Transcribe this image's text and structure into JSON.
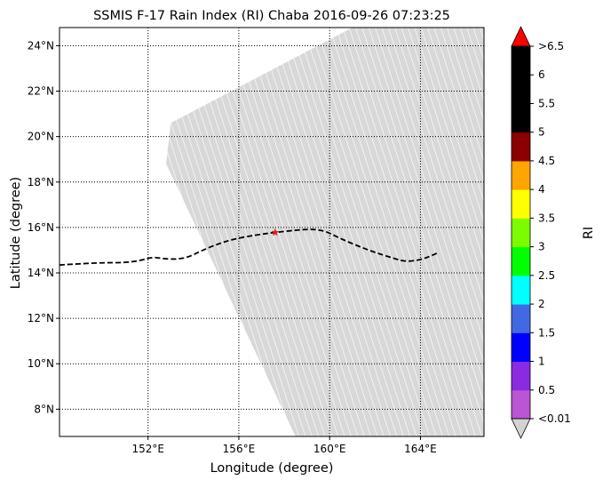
{
  "chart_data": {
    "type": "map",
    "title": "SSMIS F-17 Rain Index (RI) Chaba 2016-09-26 07:23:25",
    "xlabel": "Longitude (degree)",
    "ylabel": "Latitude (degree)",
    "xlim": [
      148.1,
      166.8
    ],
    "ylim": [
      6.8,
      24.8
    ],
    "x_ticks": [
      {
        "value": 152,
        "label": "152°E"
      },
      {
        "value": 156,
        "label": "156°E"
      },
      {
        "value": 160,
        "label": "160°E"
      },
      {
        "value": 164,
        "label": "164°E"
      }
    ],
    "y_ticks": [
      {
        "value": 8,
        "label": "8°N"
      },
      {
        "value": 10,
        "label": "10°N"
      },
      {
        "value": 12,
        "label": "12°N"
      },
      {
        "value": 14,
        "label": "14°N"
      },
      {
        "value": 16,
        "label": "16°N"
      },
      {
        "value": 18,
        "label": "18°N"
      },
      {
        "value": 20,
        "label": "20°N"
      },
      {
        "value": 22,
        "label": "22°N"
      },
      {
        "value": 24,
        "label": "24°N"
      }
    ],
    "grid": "dotted",
    "swath": {
      "color": "#d3d3d3",
      "polygon": [
        [
          158.5,
          6.8
        ],
        [
          166.8,
          6.8
        ],
        [
          166.8,
          24.8
        ],
        [
          161.0,
          24.8
        ],
        [
          153.0,
          20.6
        ],
        [
          152.8,
          18.8
        ]
      ]
    },
    "track": {
      "style": "dashed",
      "color": "#000000",
      "points": [
        [
          148.1,
          14.35
        ],
        [
          149.0,
          14.4
        ],
        [
          150.0,
          14.45
        ],
        [
          151.0,
          14.45
        ],
        [
          151.7,
          14.55
        ],
        [
          152.2,
          14.7
        ],
        [
          152.7,
          14.62
        ],
        [
          153.3,
          14.6
        ],
        [
          153.8,
          14.7
        ],
        [
          154.3,
          14.95
        ],
        [
          155.0,
          15.25
        ],
        [
          155.8,
          15.5
        ],
        [
          156.8,
          15.68
        ],
        [
          157.6,
          15.78
        ],
        [
          158.5,
          15.88
        ],
        [
          159.2,
          15.93
        ],
        [
          159.8,
          15.85
        ],
        [
          160.4,
          15.55
        ],
        [
          161.2,
          15.2
        ],
        [
          162.0,
          14.9
        ],
        [
          162.8,
          14.65
        ],
        [
          163.3,
          14.5
        ],
        [
          163.9,
          14.55
        ],
        [
          164.4,
          14.72
        ],
        [
          164.8,
          14.9
        ]
      ]
    },
    "storm_center": {
      "lon": 157.6,
      "lat": 15.78,
      "marker": "star",
      "color": "#e41a1c"
    },
    "colorbar": {
      "label": "RI",
      "tick_labels": [
        "<0.01",
        "0.5",
        "1",
        "1.5",
        "2",
        "2.5",
        "3",
        "3.5",
        "4",
        "4.5",
        "5",
        "5.5",
        "6",
        ">6.5"
      ],
      "under_color": "#d3d3d3",
      "over_color": "#ff0000",
      "colors": [
        "#ba55d3",
        "#8a2be2",
        "#0000ff",
        "#4169e1",
        "#00ffff",
        "#00ff00",
        "#7cfc00",
        "#ffff00",
        "#ffa500",
        "#8b0000",
        "#000000",
        "#000000",
        "#000000"
      ]
    }
  }
}
